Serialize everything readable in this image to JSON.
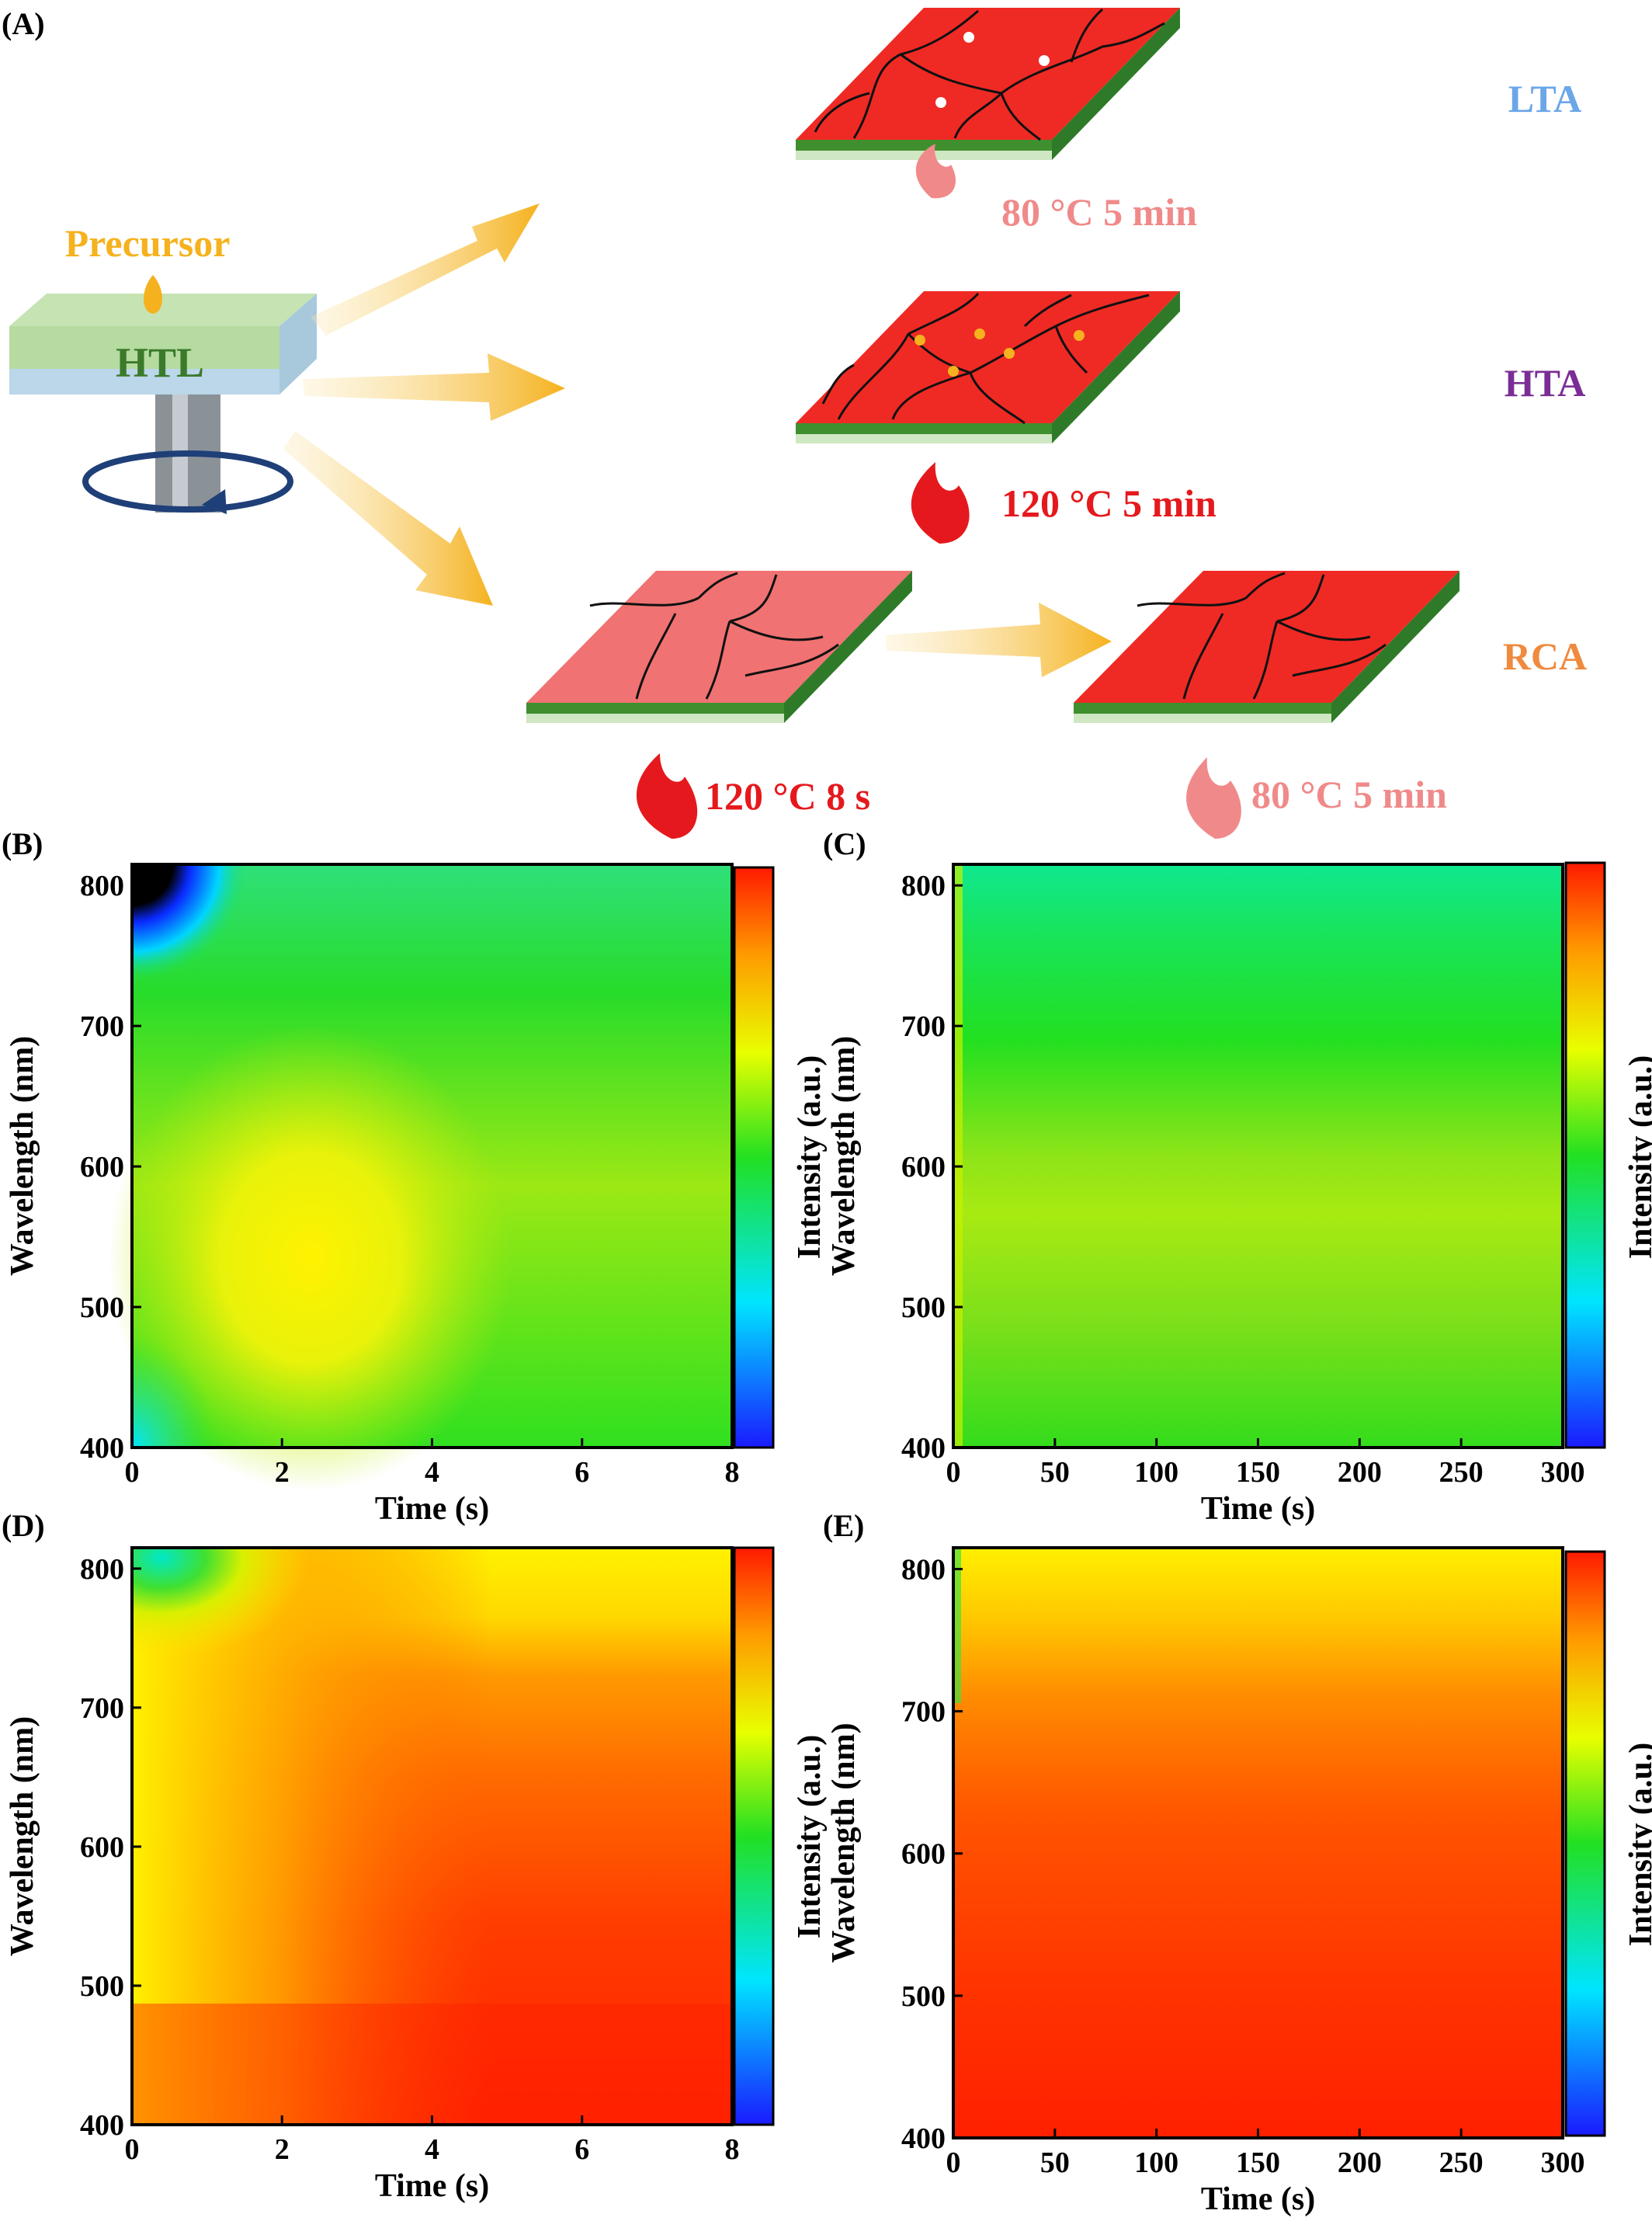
{
  "panel_labels": {
    "a": "(A)",
    "b": "(B)",
    "c": "(C)",
    "d": "(D)",
    "e": "(E)"
  },
  "schematic": {
    "precursor_label": "Precursor",
    "htl_label": "HTL",
    "routes": [
      {
        "name": "LTA",
        "color": "#6aa6e8",
        "anneal": "80 °C  5 min",
        "anneal_color": "#f08a8a"
      },
      {
        "name": "HTA",
        "color": "#7b2d96",
        "anneal": "120 °C  5 min",
        "anneal_color": "#e5191d"
      },
      {
        "name": "RCA",
        "color": "#ef8a3e",
        "anneal_first": "120 °C  8 s",
        "anneal_first_color": "#e5191d",
        "anneal_second": "80 °C  5 min",
        "anneal_second_color": "#f08a8a"
      }
    ],
    "colors": {
      "arrow": "#f5b21e",
      "perovskite": "#ef2a24",
      "perovskite_light": "#f07272",
      "htl": "#b5dba1",
      "substrate": "#bcd6ea",
      "film_green": "#3f8f2e"
    }
  },
  "chart_data": [
    {
      "type": "heatmap",
      "panel": "(B)",
      "xlabel": "Time (s)",
      "ylabel": "Wavelength (nm)",
      "colorbar_label": "Intensity (a.u.)",
      "xlim": [
        0,
        8
      ],
      "ylim": [
        400,
        815
      ],
      "xticks": [
        "0",
        "2",
        "4",
        "6",
        "8"
      ],
      "yticks": [
        "400",
        "500",
        "600",
        "700",
        "800"
      ],
      "description_levels": "peak yellow near t=2.4 s, 550 nm; green elsewhere; dark blue/black top-left corner"
    },
    {
      "type": "heatmap",
      "panel": "(C)",
      "xlabel": "Time (s)",
      "ylabel": "Wavelength (nm)",
      "colorbar_label": "Intensity (a.u.)",
      "xlim": [
        0,
        300
      ],
      "ylim": [
        400,
        815
      ],
      "xticks": [
        "0",
        "50",
        "100",
        "150",
        "200",
        "250",
        "300"
      ],
      "yticks": [
        "400",
        "500",
        "600",
        "700",
        "800"
      ]
    },
    {
      "type": "heatmap",
      "panel": "(D)",
      "xlabel": "Time (s)",
      "ylabel": "Wavelength (nm)",
      "colorbar_label": "Intensity (a.u.)",
      "xlim": [
        0,
        8
      ],
      "ylim": [
        400,
        815
      ],
      "xticks": [
        "0",
        "2",
        "4",
        "6",
        "8"
      ],
      "yticks": [
        "400",
        "500",
        "600",
        "700",
        "800"
      ]
    },
    {
      "type": "heatmap",
      "panel": "(E)",
      "xlabel": "Time (s)",
      "ylabel": "Wavelength (nm)",
      "colorbar_label": "Intensity (a.u.)",
      "xlim": [
        0,
        300
      ],
      "ylim": [
        400,
        815
      ],
      "xticks": [
        "0",
        "50",
        "100",
        "150",
        "200",
        "250",
        "300"
      ],
      "yticks": [
        "400",
        "500",
        "600",
        "700",
        "800"
      ]
    }
  ]
}
